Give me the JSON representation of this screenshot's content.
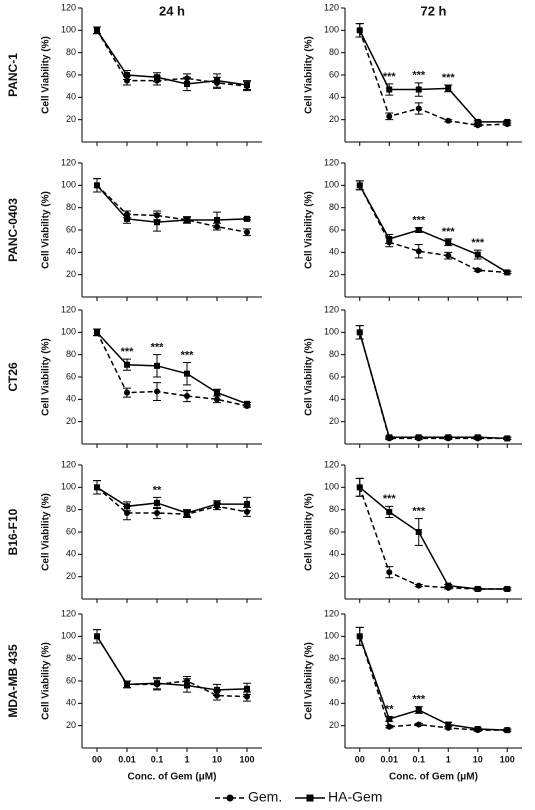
{
  "column_titles": [
    "24 h",
    "72 h"
  ],
  "row_labels": [
    "PANC-1",
    "PANC-0403",
    "CT26",
    "B16-F10",
    "MDA-MB 435"
  ],
  "ylabel": "Cell Viability (%)",
  "xlabel": "Conc. of Gem (μM)",
  "x_categories": [
    "00",
    "0.01",
    "0.1",
    "1",
    "10",
    "100"
  ],
  "legend": [
    {
      "name": "Gem.",
      "color": "#000000",
      "dashed": true,
      "marker": "circle"
    },
    {
      "name": "HA-Gem",
      "color": "#000000",
      "dashed": false,
      "marker": "square"
    }
  ],
  "chart_data": [
    {
      "type": "line",
      "ylim": [
        0,
        120
      ],
      "yticks": [
        20,
        40,
        60,
        80,
        100,
        120
      ],
      "series": [
        {
          "values": [
            100,
            55,
            55,
            57,
            53,
            50
          ],
          "errors": [
            3,
            4,
            4,
            4,
            5,
            4
          ]
        },
        {
          "values": [
            100,
            60,
            58,
            52,
            55,
            51
          ],
          "errors": [
            3,
            4,
            4,
            6,
            6,
            4
          ]
        }
      ],
      "annotations": []
    },
    {
      "type": "line",
      "ylim": [
        0,
        120
      ],
      "yticks": [
        20,
        40,
        60,
        80,
        100,
        120
      ],
      "series": [
        {
          "values": [
            100,
            23,
            30,
            19,
            15,
            16
          ],
          "errors": [
            6,
            3,
            5,
            1,
            1,
            1
          ]
        },
        {
          "values": [
            100,
            47,
            47,
            48,
            18,
            18
          ],
          "errors": [
            6,
            5,
            6,
            3,
            1,
            1
          ]
        }
      ],
      "annotations": [
        {
          "text": "***",
          "x": 1
        },
        {
          "text": "***",
          "x": 2
        },
        {
          "text": "***",
          "x": 3
        }
      ]
    },
    {
      "type": "line",
      "ylim": [
        0,
        120
      ],
      "yticks": [
        20,
        40,
        60,
        80,
        100,
        120
      ],
      "series": [
        {
          "values": [
            100,
            74,
            73,
            69,
            63,
            58
          ],
          "errors": [
            6,
            3,
            4,
            2,
            3,
            3
          ]
        },
        {
          "values": [
            100,
            70,
            67,
            69,
            69,
            70
          ],
          "errors": [
            6,
            4,
            8,
            3,
            7,
            1
          ]
        }
      ],
      "annotations": []
    },
    {
      "type": "line",
      "ylim": [
        0,
        120
      ],
      "yticks": [
        20,
        40,
        60,
        80,
        100,
        120
      ],
      "series": [
        {
          "values": [
            100,
            49,
            41,
            37,
            24,
            22
          ],
          "errors": [
            4,
            4,
            6,
            3,
            1,
            1
          ]
        },
        {
          "values": [
            100,
            52,
            60,
            49,
            38,
            22
          ],
          "errors": [
            4,
            4,
            2,
            3,
            4,
            1
          ]
        }
      ],
      "annotations": [
        {
          "text": "***",
          "x": 2
        },
        {
          "text": "***",
          "x": 3
        },
        {
          "text": "***",
          "x": 4
        }
      ]
    },
    {
      "type": "line",
      "ylim": [
        0,
        120
      ],
      "yticks": [
        20,
        40,
        60,
        80,
        100,
        120
      ],
      "series": [
        {
          "values": [
            100,
            46,
            47,
            43,
            40,
            34
          ],
          "errors": [
            3,
            4,
            8,
            5,
            3,
            1
          ]
        },
        {
          "values": [
            100,
            71,
            70,
            63,
            46,
            36
          ],
          "errors": [
            3,
            5,
            10,
            10,
            3,
            1
          ]
        }
      ],
      "annotations": [
        {
          "text": "***",
          "x": 1
        },
        {
          "text": "***",
          "x": 2
        },
        {
          "text": "***",
          "x": 3
        }
      ]
    },
    {
      "type": "line",
      "ylim": [
        0,
        120
      ],
      "yticks": [
        20,
        40,
        60,
        80,
        100,
        120
      ],
      "series": [
        {
          "values": [
            100,
            5,
            5,
            5,
            5,
            5
          ],
          "errors": [
            6,
            1,
            1,
            1,
            1,
            1
          ]
        },
        {
          "values": [
            100,
            6,
            6,
            6,
            6,
            5
          ],
          "errors": [
            6,
            1,
            1,
            1,
            1,
            1
          ]
        }
      ],
      "annotations": []
    },
    {
      "type": "line",
      "ylim": [
        0,
        120
      ],
      "yticks": [
        20,
        40,
        60,
        80,
        100,
        120
      ],
      "series": [
        {
          "values": [
            100,
            77,
            77,
            76,
            83,
            78
          ],
          "errors": [
            6,
            6,
            5,
            3,
            3,
            4
          ]
        },
        {
          "values": [
            100,
            83,
            86,
            77,
            85,
            85
          ],
          "errors": [
            6,
            4,
            5,
            3,
            3,
            6
          ]
        }
      ],
      "annotations": [
        {
          "text": "**",
          "x": 2
        }
      ]
    },
    {
      "type": "line",
      "ylim": [
        0,
        120
      ],
      "yticks": [
        20,
        40,
        60,
        80,
        100,
        120
      ],
      "series": [
        {
          "values": [
            100,
            24,
            12,
            10,
            9,
            9
          ],
          "errors": [
            8,
            5,
            1,
            1,
            1,
            1
          ]
        },
        {
          "values": [
            100,
            78,
            60,
            12,
            9,
            9
          ],
          "errors": [
            8,
            5,
            12,
            1,
            1,
            1
          ]
        }
      ],
      "annotations": [
        {
          "text": "***",
          "x": 1
        },
        {
          "text": "***",
          "x": 2
        }
      ]
    },
    {
      "type": "line",
      "ylim": [
        0,
        120
      ],
      "yticks": [
        20,
        40,
        60,
        80,
        100,
        120
      ],
      "series": [
        {
          "values": [
            100,
            57,
            57,
            60,
            47,
            46
          ],
          "errors": [
            6,
            3,
            5,
            4,
            4,
            4
          ]
        },
        {
          "values": [
            100,
            57,
            58,
            56,
            52,
            53
          ],
          "errors": [
            6,
            3,
            5,
            6,
            5,
            5
          ]
        }
      ],
      "annotations": []
    },
    {
      "type": "line",
      "ylim": [
        0,
        120
      ],
      "yticks": [
        20,
        40,
        60,
        80,
        100,
        120
      ],
      "series": [
        {
          "values": [
            100,
            19,
            21,
            18,
            16,
            16
          ],
          "errors": [
            8,
            1,
            1,
            1,
            1,
            1
          ]
        },
        {
          "values": [
            100,
            26,
            34,
            21,
            17,
            16
          ],
          "errors": [
            8,
            2,
            3,
            2,
            1,
            1
          ]
        }
      ],
      "annotations": [
        {
          "text": "**",
          "x": 1
        },
        {
          "text": "***",
          "x": 2
        }
      ]
    }
  ]
}
